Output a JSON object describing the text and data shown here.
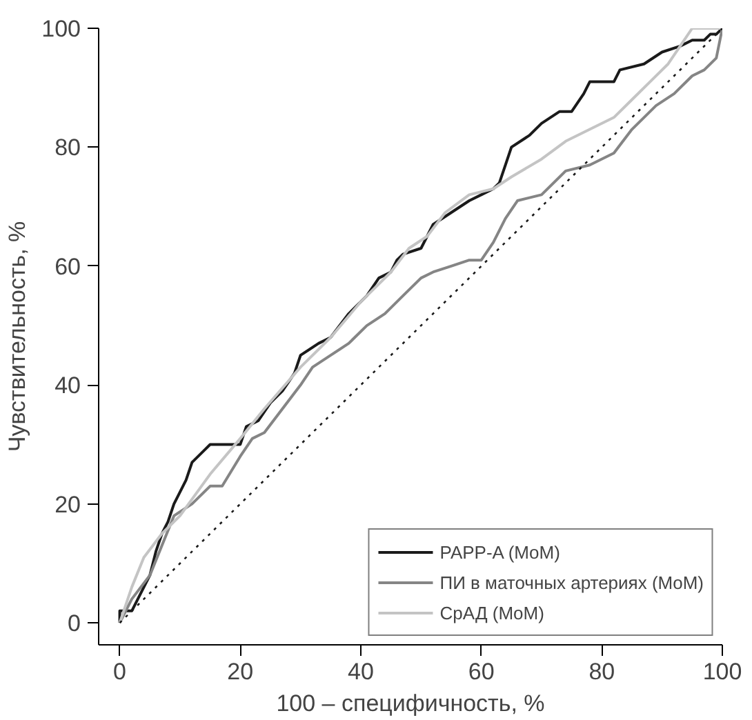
{
  "chart_data": {
    "type": "line",
    "xlabel": "100 – специфичность, %",
    "ylabel": "Чувствительность, %",
    "xlim": [
      -3.5,
      100
    ],
    "ylim": [
      -3.7,
      100
    ],
    "xticks": [
      0,
      20,
      40,
      60,
      80,
      100
    ],
    "yticks": [
      0,
      20,
      40,
      60,
      80,
      100
    ],
    "grid": false,
    "legend": "bottom right",
    "series": [
      {
        "name": "PAPP-A (MoM)",
        "color": "#1a1a1a",
        "x": [
          0,
          0,
          2,
          3,
          5,
          6,
          7,
          8,
          9,
          11,
          12,
          14,
          15,
          20,
          21,
          23,
          25,
          27,
          29,
          30,
          33,
          35,
          38,
          41,
          43,
          45,
          46,
          47,
          50,
          52,
          55,
          58,
          60,
          62,
          63,
          64,
          65,
          68,
          70,
          73,
          75,
          77,
          78,
          79,
          82,
          83,
          87,
          90,
          93,
          95,
          97,
          98,
          99,
          100
        ],
        "values": [
          0,
          2,
          2,
          4,
          8,
          12,
          15,
          17,
          20,
          24,
          27,
          29,
          30,
          30,
          33,
          34,
          37,
          39,
          42,
          45,
          47,
          48,
          52,
          55,
          58,
          59,
          61,
          62,
          63,
          67,
          69,
          71,
          72,
          73,
          74,
          77,
          80,
          82,
          84,
          86,
          86,
          89,
          91,
          91,
          91,
          93,
          94,
          96,
          97,
          98,
          98,
          99,
          99,
          100
        ]
      },
      {
        "name": "ПИ в маточных артериях (MoM)",
        "color": "#858585",
        "x": [
          0,
          2,
          5,
          7,
          9,
          12,
          15,
          17,
          20,
          22,
          24,
          27,
          30,
          32,
          35,
          38,
          41,
          44,
          47,
          50,
          52,
          55,
          58,
          60,
          62,
          64,
          66,
          70,
          74,
          78,
          82,
          85,
          89,
          92,
          95,
          97,
          99,
          100
        ],
        "values": [
          0,
          4,
          8,
          13,
          18,
          20,
          23,
          23,
          28,
          31,
          32,
          36,
          40,
          43,
          45,
          47,
          50,
          52,
          55,
          58,
          59,
          60,
          61,
          61,
          64,
          68,
          71,
          72,
          76,
          77,
          79,
          83,
          87,
          89,
          92,
          93,
          95,
          100
        ]
      },
      {
        "name": "СрАД (MoM)",
        "color": "#c4c4c4",
        "x": [
          0,
          2,
          4,
          7,
          10,
          15,
          20,
          24,
          30,
          35,
          40,
          45,
          48,
          51,
          54,
          58,
          62,
          65,
          70,
          74,
          78,
          82,
          85,
          88,
          91,
          93,
          95,
          100
        ],
        "values": [
          0,
          6,
          11,
          15,
          18,
          25,
          31,
          36,
          43,
          48,
          54,
          59,
          63,
          65,
          69,
          72,
          73,
          75,
          78,
          81,
          83,
          85,
          88,
          91,
          94,
          97,
          100,
          100
        ]
      },
      {
        "color": "#1a1a1a",
        "line_style": "dotted",
        "x": [
          0,
          100
        ],
        "values": [
          0,
          100
        ]
      }
    ]
  }
}
